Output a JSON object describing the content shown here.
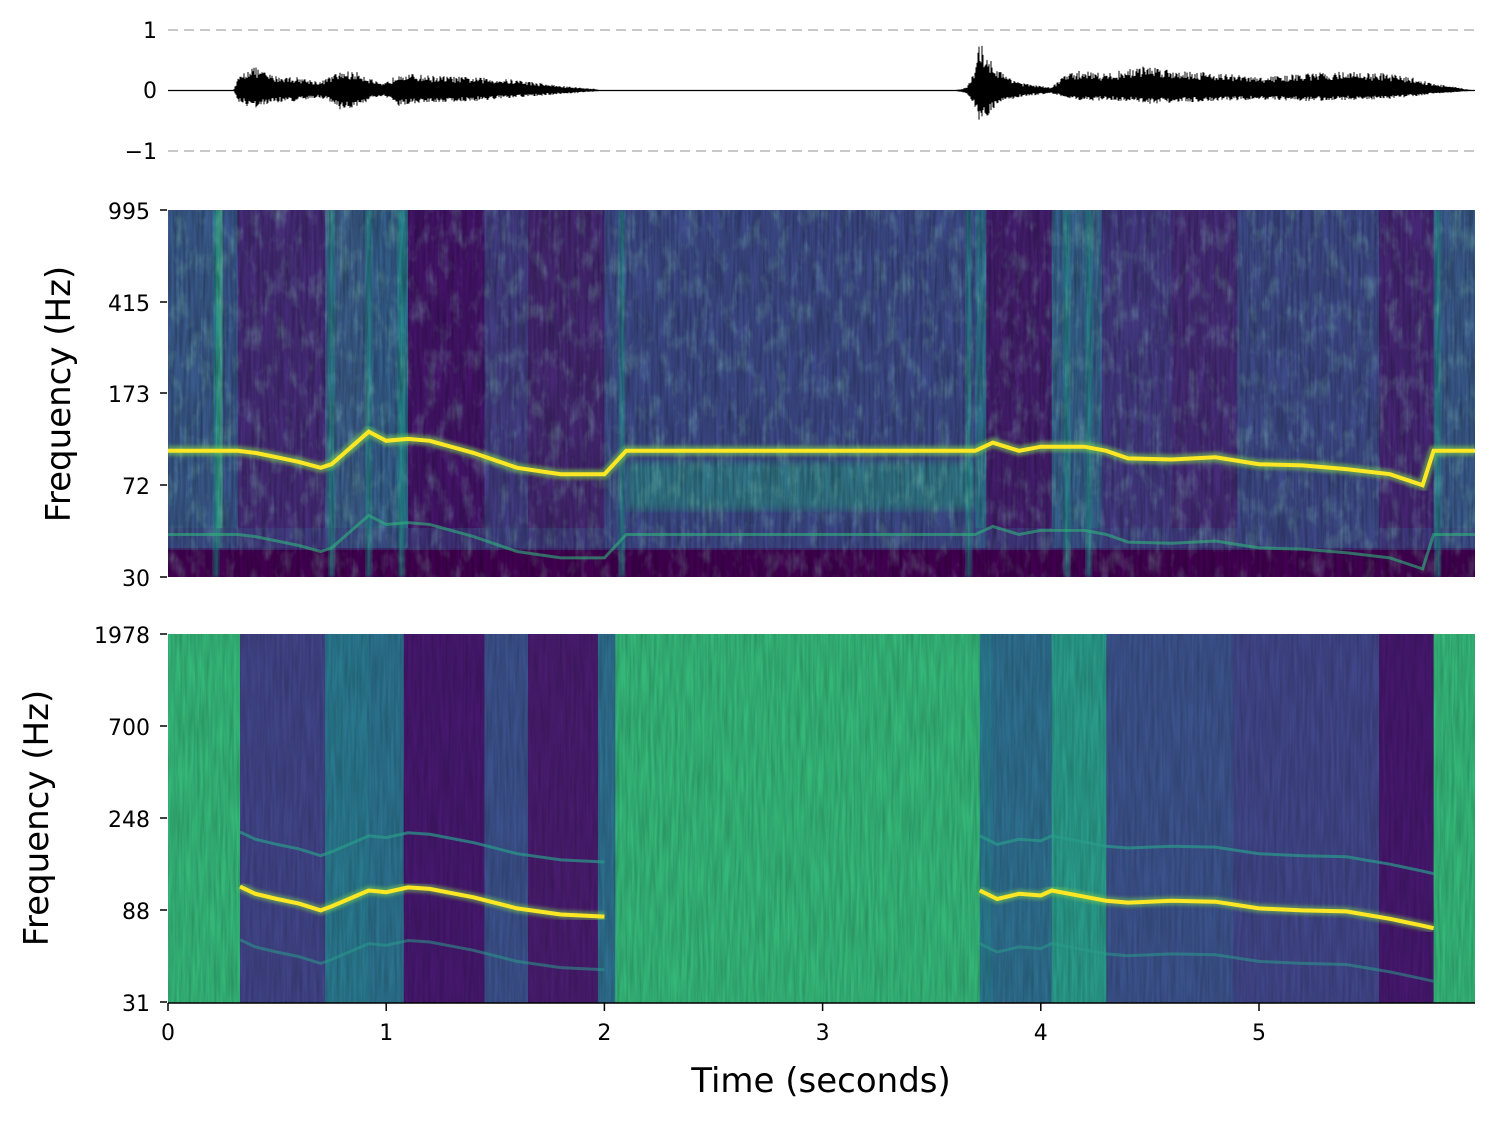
{
  "chart_data": [
    {
      "type": "line",
      "panel": "waveform",
      "yticks": [
        "1",
        "0",
        "−1"
      ],
      "ylim": [
        -1,
        1
      ],
      "grid": "dashed lines at -1 and 1",
      "envelope": {
        "t": [
          0.0,
          0.3,
          0.32,
          0.38,
          0.42,
          0.48,
          0.6,
          0.7,
          0.75,
          0.8,
          0.88,
          0.93,
          0.98,
          1.02,
          1.06,
          1.1,
          1.2,
          1.4,
          1.6,
          1.8,
          1.95,
          2.0,
          3.6,
          3.66,
          3.7,
          3.72,
          3.76,
          3.82,
          3.92,
          4.05,
          4.1,
          4.2,
          4.3,
          4.4,
          4.5,
          4.6,
          4.8,
          5.0,
          5.2,
          5.4,
          5.6,
          5.7,
          5.8,
          5.99
        ],
        "top": [
          0.0,
          0.0,
          0.2,
          0.42,
          0.35,
          0.25,
          0.22,
          0.15,
          0.25,
          0.33,
          0.3,
          0.2,
          0.1,
          0.18,
          0.32,
          0.28,
          0.25,
          0.22,
          0.18,
          0.08,
          0.03,
          0.0,
          0.0,
          0.05,
          0.35,
          0.82,
          0.55,
          0.3,
          0.12,
          0.05,
          0.25,
          0.35,
          0.28,
          0.36,
          0.42,
          0.35,
          0.3,
          0.22,
          0.28,
          0.32,
          0.28,
          0.22,
          0.12,
          0.0
        ],
        "bot": [
          0.0,
          0.0,
          0.18,
          0.3,
          0.28,
          0.2,
          0.18,
          0.12,
          0.2,
          0.35,
          0.25,
          0.15,
          0.1,
          0.15,
          0.28,
          0.22,
          0.2,
          0.18,
          0.12,
          0.06,
          0.02,
          0.0,
          0.0,
          0.05,
          0.3,
          0.55,
          0.4,
          0.2,
          0.1,
          0.05,
          0.1,
          0.18,
          0.16,
          0.18,
          0.22,
          0.2,
          0.18,
          0.15,
          0.18,
          0.16,
          0.14,
          0.1,
          0.06,
          0.0
        ]
      }
    },
    {
      "type": "heatmap",
      "panel": "spectrogram-1",
      "ylabel": "Frequency (Hz)",
      "yticks": [
        "995",
        "415",
        "173",
        "72",
        "30"
      ],
      "colormap": "viridis",
      "ridge": {
        "t": [
          0.0,
          0.32,
          0.4,
          0.5,
          0.6,
          0.7,
          0.75,
          0.92,
          1.0,
          1.1,
          1.2,
          1.4,
          1.6,
          1.8,
          2.0,
          2.1,
          3.7,
          3.78,
          3.9,
          4.0,
          4.1,
          4.2,
          4.3,
          4.4,
          4.6,
          4.8,
          5.0,
          5.2,
          5.4,
          5.6,
          5.75,
          5.8,
          5.99
        ],
        "hz": [
          100,
          100,
          98,
          94,
          90,
          85,
          88,
          120,
          110,
          112,
          110,
          98,
          85,
          80,
          80,
          100,
          100,
          108,
          100,
          104,
          104,
          104,
          100,
          93,
          92,
          94,
          88,
          87,
          84,
          80,
          72,
          100,
          100
        ]
      }
    },
    {
      "type": "heatmap",
      "panel": "spectrogram-2",
      "xlabel": "Time (seconds)",
      "ylabel": "Frequency (Hz)",
      "xticks": [
        "0",
        "1",
        "2",
        "3",
        "4",
        "5"
      ],
      "xlim": [
        0,
        5.99
      ],
      "yticks": [
        "1978",
        "700",
        "248",
        "88",
        "31"
      ],
      "colormap": "viridis",
      "ridge": {
        "t": [
          0.33,
          0.4,
          0.5,
          0.6,
          0.7,
          0.75,
          0.92,
          1.0,
          1.1,
          1.2,
          1.4,
          1.6,
          1.8,
          2.0,
          3.72,
          3.8,
          3.9,
          4.0,
          4.05,
          4.3,
          4.4,
          4.6,
          4.8,
          5.0,
          5.2,
          5.4,
          5.6,
          5.75,
          5.8
        ],
        "hz": [
          115,
          106,
          100,
          95,
          88,
          92,
          110,
          108,
          114,
          112,
          102,
          90,
          84,
          82,
          110,
          100,
          106,
          104,
          110,
          98,
          96,
          98,
          97,
          90,
          88,
          87,
          80,
          74,
          72
        ]
      }
    }
  ]
}
